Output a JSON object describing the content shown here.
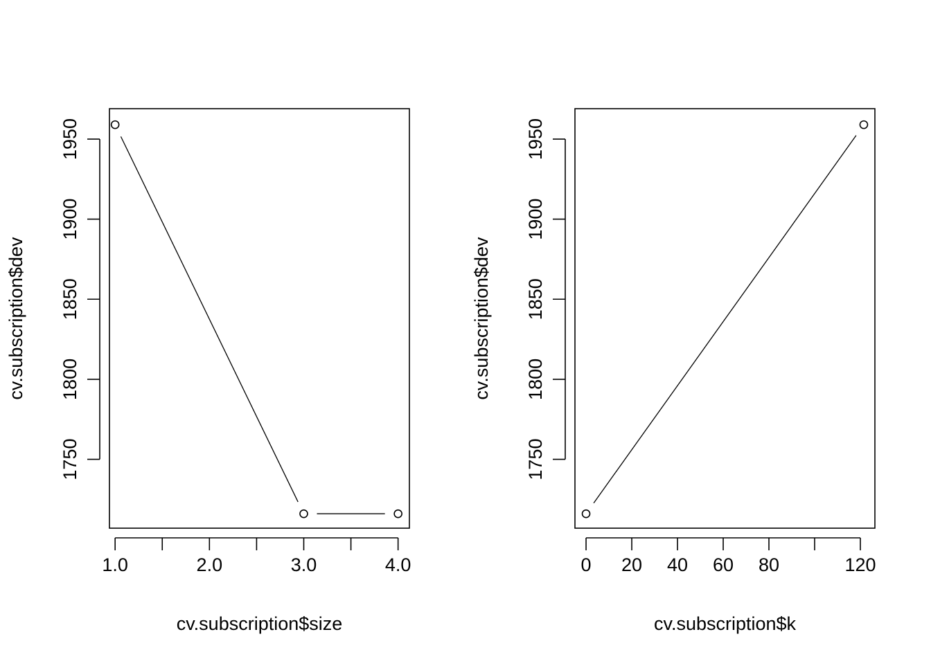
{
  "chart_data": [
    {
      "type": "line",
      "markers": "open-circle",
      "title": "",
      "xlabel": "cv.subscription$size",
      "ylabel": "cv.subscription$dev",
      "x": [
        1,
        3,
        4
      ],
      "y": [
        1959,
        1716,
        1716
      ],
      "xlim": [
        0.94,
        4.12
      ],
      "ylim": [
        1707,
        1969
      ],
      "xticks": [
        1,
        1.5,
        2,
        2.5,
        3,
        3.5,
        4
      ],
      "xtick_labels": [
        "1.0",
        "",
        "2.0",
        "",
        "3.0",
        "",
        "4.0"
      ],
      "yticks": [
        1750,
        1800,
        1850,
        1900,
        1950
      ],
      "ytick_labels": [
        "1750",
        "1800",
        "1850",
        "1900",
        "1950"
      ],
      "grid": false,
      "legend": "none"
    },
    {
      "type": "line",
      "markers": "open-circle",
      "title": "",
      "xlabel": "cv.subscription$k",
      "ylabel": "cv.subscription$dev",
      "x": [
        0,
        121.5
      ],
      "y": [
        1716,
        1959
      ],
      "xlim": [
        -4.86,
        126.36
      ],
      "ylim": [
        1707,
        1969
      ],
      "xticks": [
        0,
        20,
        40,
        60,
        80,
        100,
        120
      ],
      "xtick_labels": [
        "0",
        "20",
        "40",
        "60",
        "80",
        "",
        "120"
      ],
      "yticks": [
        1750,
        1800,
        1850,
        1900,
        1950
      ],
      "ytick_labels": [
        "1750",
        "1800",
        "1850",
        "1900",
        "1950"
      ],
      "grid": false,
      "legend": "none"
    }
  ]
}
